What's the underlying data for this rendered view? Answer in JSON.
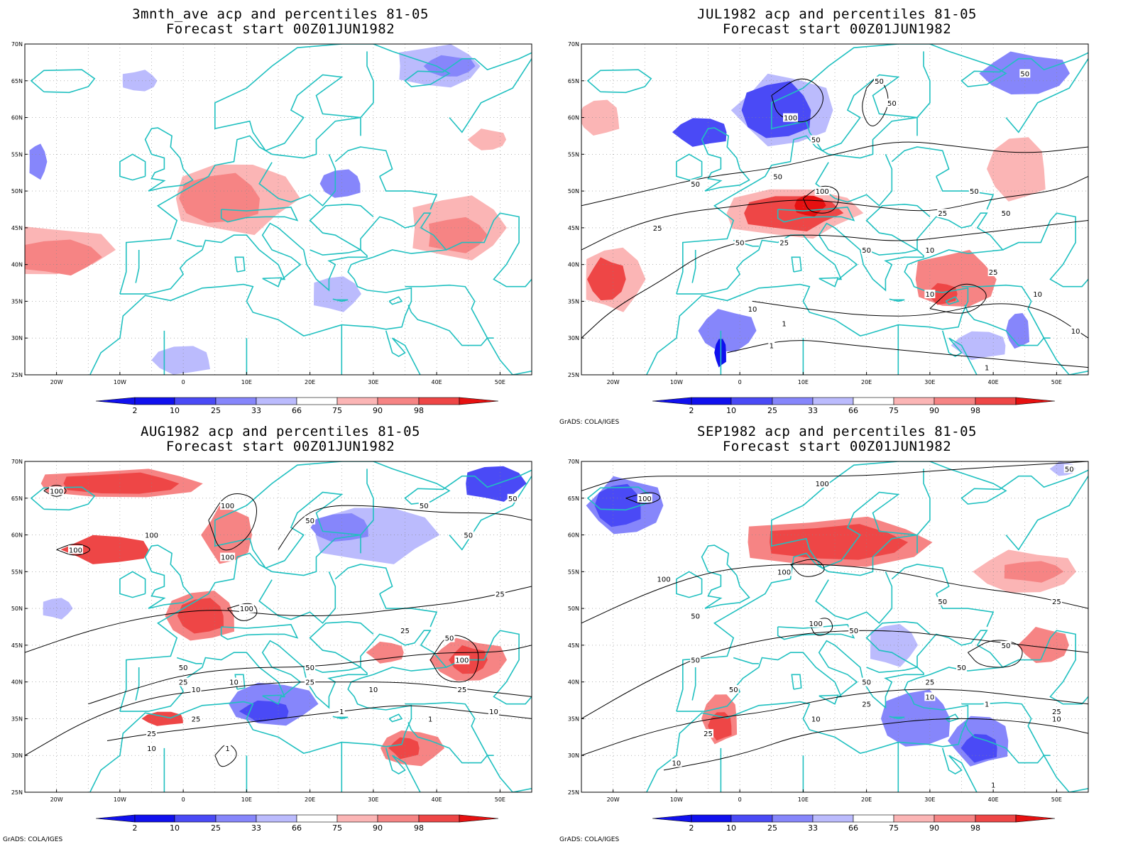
{
  "colors": {
    "blue_2": "#1010ee",
    "blue_10": "#4a4af6",
    "blue_25": "#8686fb",
    "blue_33": "#bbbbfd",
    "red_66": "#fbb5b5",
    "red_75": "#f68484",
    "red_90": "#ee4646",
    "red_98": "#e61010",
    "coast": "#20c0c0",
    "contour": "#000000"
  },
  "map": {
    "lat_labels": [
      "70N",
      "65N",
      "60N",
      "55N",
      "50N",
      "45N",
      "40N",
      "35N",
      "30N",
      "25N"
    ],
    "lon_labels": [
      "20W",
      "10W",
      "0",
      "10E",
      "20E",
      "30E",
      "40E",
      "50E"
    ],
    "legend_labels": [
      "2",
      "10",
      "25",
      "33",
      "66",
      "75",
      "90",
      "98"
    ],
    "credit": "GrADS: COLA/IGES"
  },
  "panels": [
    {
      "title1": "3mnth_ave acp and percentiles 81-05",
      "title2": "Forecast start 00Z01JUN1982",
      "show_credit": false,
      "contour_labels": [],
      "blobs": [
        {
          "lon": -24,
          "lat": 42,
          "w": 26,
          "h": 7,
          "cls": "red_66"
        },
        {
          "lon": -20,
          "lat": 41,
          "w": 14,
          "h": 5,
          "cls": "red_75"
        },
        {
          "lon": 8,
          "lat": 49,
          "w": 20,
          "h": 10,
          "cls": "red_66"
        },
        {
          "lon": 6,
          "lat": 49,
          "w": 14,
          "h": 7,
          "cls": "red_75"
        },
        {
          "lon": 43,
          "lat": 45,
          "w": 16,
          "h": 9,
          "cls": "red_66"
        },
        {
          "lon": 43,
          "lat": 44,
          "w": 10,
          "h": 5,
          "cls": "red_75"
        },
        {
          "lon": 40,
          "lat": 67,
          "w": 14,
          "h": 6,
          "cls": "blue_33"
        },
        {
          "lon": 42,
          "lat": 67,
          "w": 8,
          "h": 3,
          "cls": "blue_25"
        },
        {
          "lon": -7,
          "lat": 65,
          "w": 6,
          "h": 3,
          "cls": "blue_33"
        },
        {
          "lon": 25,
          "lat": 51,
          "w": 7,
          "h": 4,
          "cls": "blue_25"
        },
        {
          "lon": 24,
          "lat": 36,
          "w": 8,
          "h": 5,
          "cls": "blue_33"
        },
        {
          "lon": 0,
          "lat": 27,
          "w": 10,
          "h": 4,
          "cls": "blue_33"
        },
        {
          "lon": -23,
          "lat": 54,
          "w": 3,
          "h": 5,
          "cls": "blue_25"
        },
        {
          "lon": 48,
          "lat": 57,
          "w": 6,
          "h": 3,
          "cls": "red_66"
        }
      ]
    },
    {
      "title1": "JUL1982 acp and percentiles 81-05",
      "title2": "Forecast start 00Z01JUN1982",
      "show_credit": true,
      "contour_labels": [
        {
          "t": "100",
          "lon": 8,
          "lat": 60
        },
        {
          "t": "50",
          "lon": 12,
          "lat": 57
        },
        {
          "t": "50",
          "lon": 22,
          "lat": 65
        },
        {
          "t": "50",
          "lon": 24,
          "lat": 62
        },
        {
          "t": "50",
          "lon": 6,
          "lat": 52
        },
        {
          "t": "50",
          "lon": -7,
          "lat": 51
        },
        {
          "t": "100",
          "lon": 13,
          "lat": 50
        },
        {
          "t": "50",
          "lon": 37,
          "lat": 50
        },
        {
          "t": "50",
          "lon": 42,
          "lat": 47
        },
        {
          "t": "25",
          "lon": 32,
          "lat": 47
        },
        {
          "t": "25",
          "lon": -13,
          "lat": 45
        },
        {
          "t": "50",
          "lon": 0,
          "lat": 43
        },
        {
          "t": "25",
          "lon": 7,
          "lat": 43
        },
        {
          "t": "50",
          "lon": 20,
          "lat": 42
        },
        {
          "t": "10",
          "lon": 30,
          "lat": 42
        },
        {
          "t": "25",
          "lon": 40,
          "lat": 39
        },
        {
          "t": "10",
          "lon": 30,
          "lat": 36
        },
        {
          "t": "10",
          "lon": 47,
          "lat": 36
        },
        {
          "t": "10",
          "lon": 2,
          "lat": 34
        },
        {
          "t": "1",
          "lon": 7,
          "lat": 32
        },
        {
          "t": "1",
          "lon": 5,
          "lat": 29
        },
        {
          "t": "10",
          "lon": 53,
          "lat": 31
        },
        {
          "t": "1",
          "lon": 39,
          "lat": 26
        },
        {
          "t": "50",
          "lon": 45,
          "lat": 66
        }
      ],
      "blobs": [
        {
          "lon": 7,
          "lat": 61,
          "w": 16,
          "h": 10,
          "cls": "blue_33"
        },
        {
          "lon": 6,
          "lat": 61,
          "w": 12,
          "h": 8,
          "cls": "blue_10"
        },
        {
          "lon": -6,
          "lat": 58,
          "w": 9,
          "h": 4,
          "cls": "blue_10"
        },
        {
          "lon": 45,
          "lat": 66,
          "w": 14,
          "h": 6,
          "cls": "blue_25"
        },
        {
          "lon": 8,
          "lat": 47,
          "w": 22,
          "h": 7,
          "cls": "red_66"
        },
        {
          "lon": 8,
          "lat": 47,
          "w": 16,
          "h": 5,
          "cls": "red_90"
        },
        {
          "lon": 11,
          "lat": 48,
          "w": 5,
          "h": 3,
          "cls": "red_98"
        },
        {
          "lon": -20,
          "lat": 38,
          "w": 10,
          "h": 9,
          "cls": "red_66"
        },
        {
          "lon": -21,
          "lat": 38,
          "w": 6,
          "h": 6,
          "cls": "red_90"
        },
        {
          "lon": 34,
          "lat": 38,
          "w": 14,
          "h": 8,
          "cls": "red_75"
        },
        {
          "lon": 32,
          "lat": 36,
          "w": 5,
          "h": 3,
          "cls": "red_90"
        },
        {
          "lon": 44,
          "lat": 53,
          "w": 10,
          "h": 9,
          "cls": "red_66"
        },
        {
          "lon": -2,
          "lat": 31,
          "w": 9,
          "h": 6,
          "cls": "blue_25"
        },
        {
          "lon": -3,
          "lat": 28,
          "w": 2,
          "h": 4,
          "cls": "blue_2"
        },
        {
          "lon": 38,
          "lat": 29,
          "w": 9,
          "h": 4,
          "cls": "blue_33"
        },
        {
          "lon": 44,
          "lat": 31,
          "w": 4,
          "h": 5,
          "cls": "blue_25"
        },
        {
          "lon": -22,
          "lat": 60,
          "w": 7,
          "h": 5,
          "cls": "red_66"
        }
      ]
    },
    {
      "title1": "AUG1982 acp and percentiles 81-05",
      "title2": "Forecast start 00Z01JUN1982",
      "show_credit": true,
      "contour_labels": [
        {
          "t": "100",
          "lon": -20,
          "lat": 66
        },
        {
          "t": "100",
          "lon": -17,
          "lat": 58
        },
        {
          "t": "100",
          "lon": -5,
          "lat": 60
        },
        {
          "t": "100",
          "lon": 7,
          "lat": 64
        },
        {
          "t": "100",
          "lon": 7,
          "lat": 57
        },
        {
          "t": "50",
          "lon": 20,
          "lat": 62
        },
        {
          "t": "50",
          "lon": 38,
          "lat": 64
        },
        {
          "t": "50",
          "lon": 52,
          "lat": 65
        },
        {
          "t": "50",
          "lon": 45,
          "lat": 60
        },
        {
          "t": "25",
          "lon": 50,
          "lat": 52
        },
        {
          "t": "100",
          "lon": 10,
          "lat": 50
        },
        {
          "t": "25",
          "lon": 35,
          "lat": 47
        },
        {
          "t": "50",
          "lon": 42,
          "lat": 46
        },
        {
          "t": "100",
          "lon": 44,
          "lat": 43
        },
        {
          "t": "50",
          "lon": 0,
          "lat": 42
        },
        {
          "t": "25",
          "lon": 0,
          "lat": 40
        },
        {
          "t": "10",
          "lon": 2,
          "lat": 39
        },
        {
          "t": "10",
          "lon": 8,
          "lat": 40
        },
        {
          "t": "50",
          "lon": 20,
          "lat": 42
        },
        {
          "t": "25",
          "lon": 20,
          "lat": 40
        },
        {
          "t": "10",
          "lon": 30,
          "lat": 39
        },
        {
          "t": "25",
          "lon": 44,
          "lat": 39
        },
        {
          "t": "10",
          "lon": 49,
          "lat": 36
        },
        {
          "t": "25",
          "lon": 2,
          "lat": 35
        },
        {
          "t": "25",
          "lon": -5,
          "lat": 33
        },
        {
          "t": "10",
          "lon": -5,
          "lat": 31
        },
        {
          "t": "1",
          "lon": 25,
          "lat": 36
        },
        {
          "t": "1",
          "lon": 39,
          "lat": 35
        },
        {
          "t": "1",
          "lon": 7,
          "lat": 31
        }
      ],
      "blobs": [
        {
          "lon": -10,
          "lat": 67,
          "w": 28,
          "h": 4,
          "cls": "red_75"
        },
        {
          "lon": -10,
          "lat": 67,
          "w": 20,
          "h": 3,
          "cls": "red_90"
        },
        {
          "lon": -12,
          "lat": 58,
          "w": 14,
          "h": 4,
          "cls": "red_90"
        },
        {
          "lon": 7,
          "lat": 60,
          "w": 8,
          "h": 8,
          "cls": "red_75"
        },
        {
          "lon": 3,
          "lat": 49,
          "w": 12,
          "h": 7,
          "cls": "red_75"
        },
        {
          "lon": 3,
          "lat": 49,
          "w": 8,
          "h": 5,
          "cls": "red_90"
        },
        {
          "lon": 30,
          "lat": 60,
          "w": 20,
          "h": 8,
          "cls": "blue_33"
        },
        {
          "lon": 25,
          "lat": 61,
          "w": 10,
          "h": 4,
          "cls": "blue_25"
        },
        {
          "lon": 49,
          "lat": 67,
          "w": 10,
          "h": 5,
          "cls": "blue_10"
        },
        {
          "lon": 14,
          "lat": 37,
          "w": 14,
          "h": 6,
          "cls": "blue_25"
        },
        {
          "lon": 13,
          "lat": 36,
          "w": 8,
          "h": 3,
          "cls": "blue_10"
        },
        {
          "lon": 45,
          "lat": 43,
          "w": 12,
          "h": 6,
          "cls": "red_75"
        },
        {
          "lon": 45,
          "lat": 43,
          "w": 6,
          "h": 4,
          "cls": "red_90"
        },
        {
          "lon": 32,
          "lat": 44,
          "w": 6,
          "h": 3,
          "cls": "red_75"
        },
        {
          "lon": 36,
          "lat": 31,
          "w": 10,
          "h": 5,
          "cls": "red_75"
        },
        {
          "lon": 35,
          "lat": 31,
          "w": 5,
          "h": 3,
          "cls": "red_90"
        },
        {
          "lon": -3,
          "lat": 35,
          "w": 7,
          "h": 2,
          "cls": "red_90"
        },
        {
          "lon": -20,
          "lat": 50,
          "w": 5,
          "h": 3,
          "cls": "blue_33"
        }
      ]
    },
    {
      "title1": "SEP1982 acp and percentiles 81-05",
      "title2": "Forecast start 00Z01JUN1982",
      "show_credit": true,
      "contour_labels": [
        {
          "t": "100",
          "lon": -15,
          "lat": 65
        },
        {
          "t": "100",
          "lon": 13,
          "lat": 67
        },
        {
          "t": "50",
          "lon": 52,
          "lat": 69
        },
        {
          "t": "100",
          "lon": -12,
          "lat": 54
        },
        {
          "t": "100",
          "lon": 7,
          "lat": 55
        },
        {
          "t": "50",
          "lon": 32,
          "lat": 51
        },
        {
          "t": "25",
          "lon": 50,
          "lat": 51
        },
        {
          "t": "50",
          "lon": -7,
          "lat": 49
        },
        {
          "t": "100",
          "lon": 12,
          "lat": 48
        },
        {
          "t": "50",
          "lon": 18,
          "lat": 47
        },
        {
          "t": "50",
          "lon": 42,
          "lat": 45
        },
        {
          "t": "50",
          "lon": 35,
          "lat": 42
        },
        {
          "t": "50",
          "lon": -7,
          "lat": 43
        },
        {
          "t": "50",
          "lon": -1,
          "lat": 39
        },
        {
          "t": "50",
          "lon": 20,
          "lat": 40
        },
        {
          "t": "25",
          "lon": 20,
          "lat": 37
        },
        {
          "t": "10",
          "lon": 30,
          "lat": 38
        },
        {
          "t": "25",
          "lon": 30,
          "lat": 40
        },
        {
          "t": "1",
          "lon": 39,
          "lat": 37
        },
        {
          "t": "25",
          "lon": 50,
          "lat": 36
        },
        {
          "t": "10",
          "lon": 50,
          "lat": 35
        },
        {
          "t": "10",
          "lon": 12,
          "lat": 35
        },
        {
          "t": "25",
          "lon": -5,
          "lat": 33
        },
        {
          "t": "10",
          "lon": -10,
          "lat": 29
        },
        {
          "t": "1",
          "lon": 40,
          "lat": 26
        }
      ],
      "blobs": [
        {
          "lon": -18,
          "lat": 64,
          "w": 12,
          "h": 8,
          "cls": "blue_25"
        },
        {
          "lon": -19,
          "lat": 64,
          "w": 8,
          "h": 6,
          "cls": "blue_10"
        },
        {
          "lon": 15,
          "lat": 59,
          "w": 32,
          "h": 7,
          "cls": "red_75"
        },
        {
          "lon": 15,
          "lat": 59,
          "w": 24,
          "h": 5,
          "cls": "red_90"
        },
        {
          "lon": 45,
          "lat": 55,
          "w": 16,
          "h": 6,
          "cls": "red_66"
        },
        {
          "lon": 46,
          "lat": 55,
          "w": 10,
          "h": 3,
          "cls": "red_75"
        },
        {
          "lon": -3,
          "lat": 35,
          "w": 6,
          "h": 7,
          "cls": "red_75"
        },
        {
          "lon": -3,
          "lat": 34,
          "w": 4,
          "h": 4,
          "cls": "red_90"
        },
        {
          "lon": 28,
          "lat": 35,
          "w": 12,
          "h": 8,
          "cls": "blue_25"
        },
        {
          "lon": 38,
          "lat": 32,
          "w": 10,
          "h": 7,
          "cls": "blue_25"
        },
        {
          "lon": 38,
          "lat": 31,
          "w": 6,
          "h": 4,
          "cls": "blue_10"
        },
        {
          "lon": 24,
          "lat": 45,
          "w": 8,
          "h": 6,
          "cls": "blue_33"
        },
        {
          "lon": 48,
          "lat": 45,
          "w": 8,
          "h": 5,
          "cls": "red_75"
        },
        {
          "lon": 51,
          "lat": 69,
          "w": 4,
          "h": 2,
          "cls": "blue_33"
        }
      ]
    }
  ]
}
